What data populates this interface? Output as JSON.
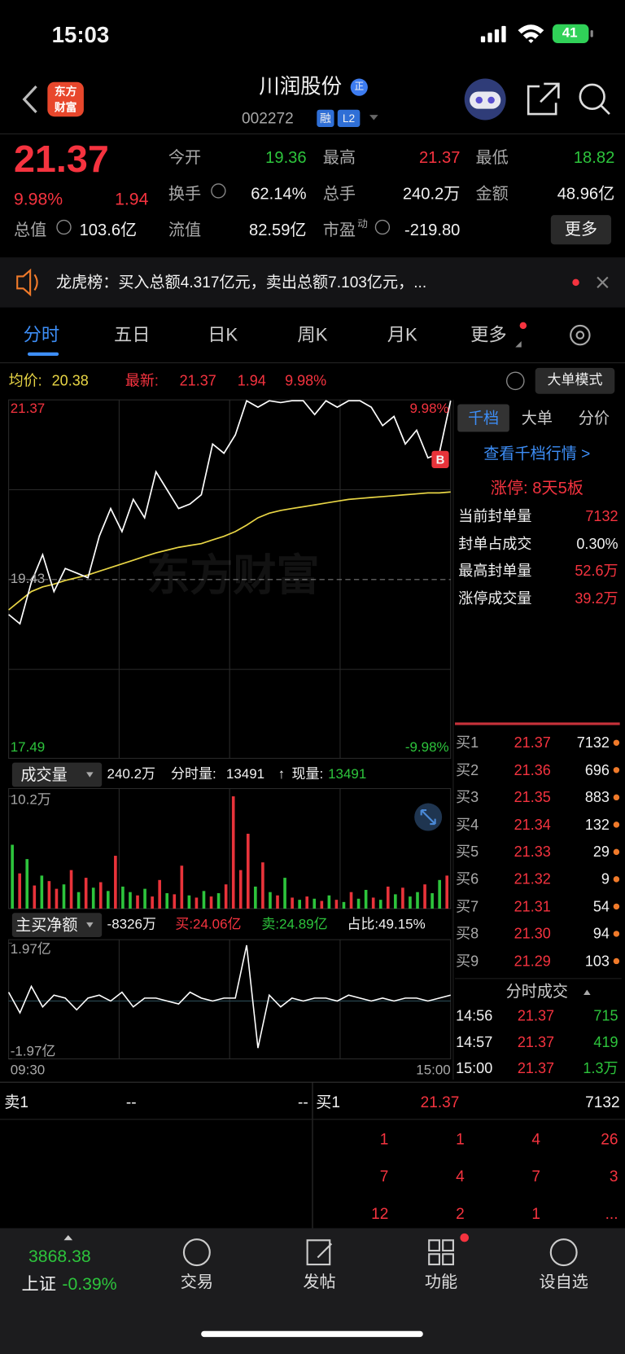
{
  "status_bar": {
    "time": "15:03",
    "battery": "41"
  },
  "header": {
    "logo": [
      "东方",
      "财富"
    ],
    "title": "川润股份",
    "badge": "正",
    "code": "002272",
    "tags": [
      "融",
      "L2"
    ]
  },
  "quote": {
    "price": "21.37",
    "change_pct": "9.98%",
    "change": "1.94",
    "stats": [
      {
        "label": "今开",
        "value": "19.36"
      },
      {
        "label": "最高",
        "value": "21.37"
      },
      {
        "label": "最低",
        "value": "18.82"
      },
      {
        "label": "换手",
        "value": "62.14%"
      },
      {
        "label": "总手",
        "value": "240.2万"
      },
      {
        "label": "金额",
        "value": "48.96亿"
      },
      {
        "label": "总值",
        "value": "103.6亿"
      },
      {
        "label": "流值",
        "value": "82.59亿"
      },
      {
        "label": "市盈",
        "sup": "动",
        "value": "-219.80"
      }
    ],
    "more": "更多"
  },
  "notice": "龙虎榜：买入总额4.317亿元，卖出总额7.103亿元，...",
  "tabs": [
    "分时",
    "五日",
    "日K",
    "周K",
    "月K",
    "更多"
  ],
  "intraday": {
    "avg_label": "均价:",
    "avg": "20.38",
    "last_label": "最新:",
    "last": "21.37",
    "last_change": "1.94",
    "last_pct": "9.98%",
    "mode": "大单模式",
    "chart": {
      "ylim": [
        17.49,
        21.37
      ],
      "prev_close": 19.43,
      "pct_top": "9.98%",
      "pct_bottom": "-9.98%",
      "watermark": "东方财富",
      "buy_marker": "B",
      "price": [
        19.05,
        18.95,
        19.4,
        19.7,
        19.3,
        19.55,
        19.5,
        19.45,
        19.9,
        20.2,
        19.95,
        20.3,
        20.1,
        20.6,
        20.4,
        20.2,
        20.25,
        20.35,
        20.9,
        20.8,
        21.0,
        21.37,
        21.3,
        21.37,
        21.35,
        21.37,
        21.37,
        21.22,
        21.37,
        21.3,
        21.37,
        21.37,
        21.3,
        21.1,
        21.2,
        20.9,
        21.05,
        20.75,
        20.8,
        21.37
      ],
      "avg": [
        19.1,
        19.2,
        19.3,
        19.35,
        19.38,
        19.42,
        19.45,
        19.48,
        19.52,
        19.56,
        19.6,
        19.64,
        19.68,
        19.72,
        19.75,
        19.78,
        19.8,
        19.82,
        19.86,
        19.9,
        19.95,
        20.02,
        20.1,
        20.15,
        20.18,
        20.2,
        20.22,
        20.24,
        20.26,
        20.28,
        20.3,
        20.31,
        20.32,
        20.33,
        20.34,
        20.35,
        20.36,
        20.37,
        20.37,
        20.38
      ],
      "price_color": "#ffffff",
      "avg_color": "#e8d545"
    },
    "volume": {
      "label": "成交量",
      "total": "240.2万",
      "minute_label": "分时量:",
      "minute": "13491",
      "arrow": "↑",
      "current_label": "现量:",
      "current": "13491",
      "ylim": [
        0,
        10.2
      ],
      "yticks": [
        {
          "value": 10.2,
          "label": "10.2万"
        }
      ],
      "values": [
        5.8,
        3.2,
        4.5,
        2.1,
        3.0,
        2.5,
        1.8,
        2.2,
        3.5,
        1.5,
        2.8,
        1.9,
        2.4,
        1.6,
        4.8,
        2.0,
        1.5,
        1.2,
        1.8,
        1.1,
        2.6,
        1.4,
        1.3,
        3.9,
        1.2,
        1.0,
        1.6,
        1.1,
        1.4,
        2.2,
        10.2,
        3.5,
        6.8,
        2.0,
        4.2,
        1.5,
        1.2,
        2.8,
        1.0,
        0.8,
        1.1,
        0.9,
        0.7,
        1.2,
        0.8,
        0.6,
        1.5,
        0.9,
        1.7,
        1.0,
        0.8,
        2.0,
        1.3,
        1.9,
        1.1,
        1.5,
        2.2,
        1.4,
        2.6,
        3.0
      ],
      "colors": [
        "#2dc43c",
        "#e8333a",
        "#2dc43c",
        "#e8333a",
        "#2dc43c",
        "#e8333a",
        "#e8333a",
        "#2dc43c",
        "#e8333a",
        "#2dc43c",
        "#e8333a",
        "#2dc43c",
        "#e8333a",
        "#2dc43c",
        "#e8333a",
        "#2dc43c",
        "#2dc43c",
        "#e8333a",
        "#2dc43c",
        "#e8333a",
        "#e8333a",
        "#2dc43c",
        "#e8333a",
        "#e8333a",
        "#2dc43c",
        "#e8333a",
        "#2dc43c",
        "#e8333a",
        "#2dc43c",
        "#e8333a",
        "#e8333a",
        "#e8333a",
        "#e8333a",
        "#2dc43c",
        "#e8333a",
        "#2dc43c",
        "#e8333a",
        "#2dc43c",
        "#e8333a",
        "#2dc43c",
        "#e8333a",
        "#2dc43c",
        "#e8333a",
        "#2dc43c",
        "#e8333a",
        "#2dc43c",
        "#e8333a",
        "#2dc43c",
        "#2dc43c",
        "#e8333a",
        "#2dc43c",
        "#e8333a",
        "#2dc43c",
        "#e8333a",
        "#2dc43c",
        "#2dc43c",
        "#e8333a",
        "#2dc43c",
        "#2dc43c",
        "#e8333a"
      ]
    },
    "net": {
      "label": "主买净额",
      "net": "-8326万",
      "buy": "买:24.06亿",
      "sell": "卖:24.89亿",
      "ratio": "占比:49.15%",
      "ylim": [
        -1.97,
        1.97
      ],
      "yticks": [
        {
          "value": 1.97,
          "label": "1.97亿"
        },
        {
          "value": -1.97,
          "label": "-1.97亿"
        }
      ],
      "values": [
        0.3,
        -0.4,
        0.5,
        -0.2,
        0.2,
        0.1,
        -0.3,
        0.1,
        0.2,
        0.0,
        0.3,
        -0.2,
        0.1,
        0.1,
        0.0,
        -0.1,
        0.3,
        0.1,
        0.0,
        0.1,
        0.1,
        1.9,
        -1.6,
        0.2,
        -0.2,
        0.1,
        0.0,
        0.1,
        0.1,
        0.0,
        0.2,
        0.1,
        0.0,
        0.1,
        0.0,
        0.1,
        0.1,
        0.0,
        0.1,
        0.2
      ],
      "color": "#ffffff"
    },
    "time_axis": [
      "09:30",
      "15:00"
    ]
  },
  "panel": {
    "tabs": [
      "千档",
      "大单",
      "分价"
    ],
    "link": "查看千档行情 >",
    "limit_up": "涨停: 8天5板",
    "rows": [
      [
        "当前封单量",
        "7132"
      ],
      [
        "封单占成交",
        "0.30%"
      ],
      [
        "最高封单量",
        "52.6万"
      ],
      [
        "涨停成交量",
        "39.2万"
      ]
    ],
    "bids": [
      [
        "买1",
        "21.37",
        "7132"
      ],
      [
        "买2",
        "21.36",
        "696"
      ],
      [
        "买3",
        "21.35",
        "883"
      ],
      [
        "买4",
        "21.34",
        "132"
      ],
      [
        "买5",
        "21.33",
        "29"
      ],
      [
        "买6",
        "21.32",
        "9"
      ],
      [
        "买7",
        "21.31",
        "54"
      ],
      [
        "买8",
        "21.30",
        "94"
      ],
      [
        "买9",
        "21.29",
        "103"
      ]
    ],
    "trades_title": "分时成交",
    "trades": [
      [
        "14:56",
        "21.37",
        "715"
      ],
      [
        "14:57",
        "21.37",
        "419"
      ],
      [
        "15:00",
        "21.37",
        "1.3万"
      ]
    ]
  },
  "level1": {
    "ask": [
      "卖1",
      "--",
      "--"
    ],
    "bid": [
      "买1",
      "21.37",
      "7132"
    ],
    "queue": [
      [
        "1",
        "1",
        "4",
        "26"
      ],
      [
        "7",
        "4",
        "7",
        "3"
      ],
      [
        "12",
        "2",
        "1",
        "..."
      ]
    ]
  },
  "nav": {
    "index_value": "3868.38",
    "index_name": "上证",
    "index_change": "-0.39%",
    "items": [
      "交易",
      "发帖",
      "功能",
      "设自选"
    ]
  }
}
